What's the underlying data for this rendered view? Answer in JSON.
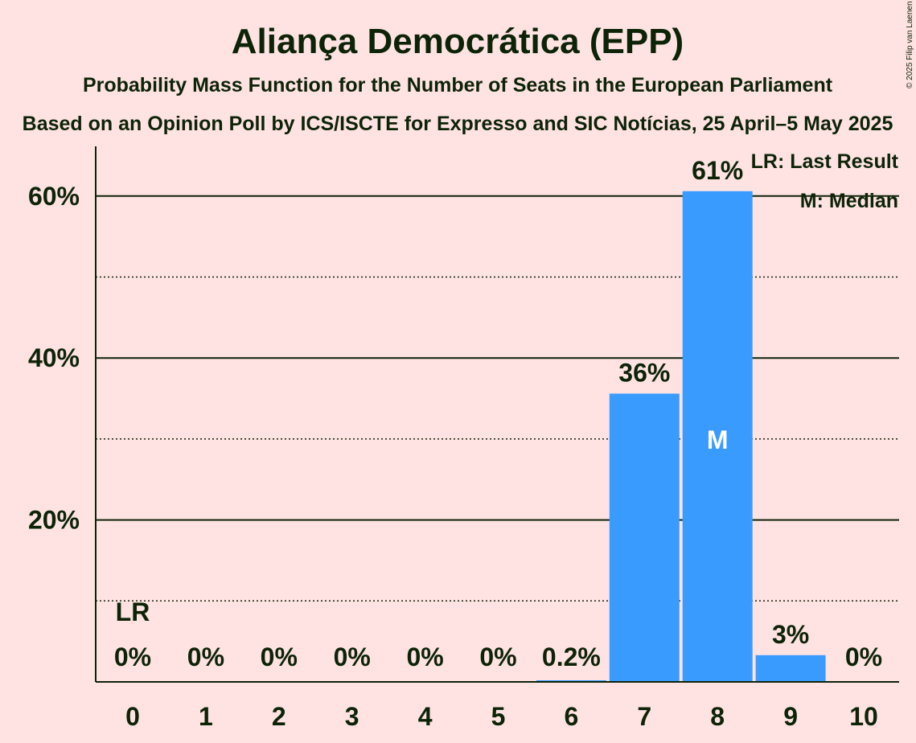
{
  "title": "Aliança Democrática (EPP)",
  "subtitle1": "Probability Mass Function for the Number of Seats in the European Parliament",
  "subtitle2": "Based on an Opinion Poll by ICS/ISCTE for Expresso and SIC Notícias, 25 April–5 May 2025",
  "credit": "© 2025 Filip van Laenen",
  "legend": {
    "last_result": "LR: Last Result",
    "median": "M: Median"
  },
  "colors": {
    "background": "#FFE3E3",
    "bar": "#3A9BFF",
    "text": "#0D2308"
  },
  "chart_data": {
    "type": "bar",
    "categories": [
      "0",
      "1",
      "2",
      "3",
      "4",
      "5",
      "6",
      "7",
      "8",
      "9",
      "10"
    ],
    "values": [
      0,
      0,
      0,
      0,
      0,
      0,
      0.2,
      35.6,
      60.6,
      3.3,
      0
    ],
    "labels": [
      "0%",
      "0%",
      "0%",
      "0%",
      "0%",
      "0%",
      "0.2%",
      "36%",
      "61%",
      "3%",
      "0%"
    ],
    "ylim": [
      0,
      66
    ],
    "yticks": [
      20,
      40,
      60
    ],
    "ytick_labels": [
      "20%",
      "40%",
      "60%"
    ],
    "minor_gridlines": [
      10,
      30,
      50
    ],
    "last_result_index": 0,
    "last_result_marker": "LR",
    "median_index": 8,
    "median_marker": "M",
    "grid": true,
    "legend_position": "top-right"
  }
}
